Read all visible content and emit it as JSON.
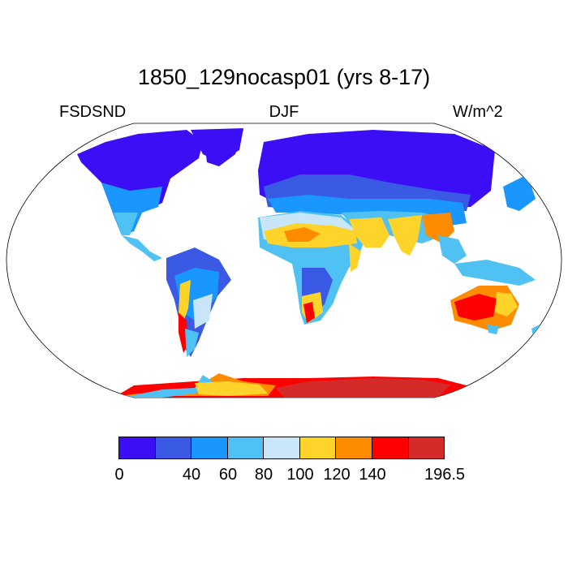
{
  "header": {
    "title": "1850_129nocasp01 (yrs 8-17)",
    "variable": "FSDSND",
    "season": "DJF",
    "units": "W/m^2"
  },
  "colorbar": {
    "colors": [
      "#3b0ef5",
      "#3a5ae6",
      "#1a96ff",
      "#4fc1f3",
      "#c8e6f7",
      "#ffd42a",
      "#ff8c00",
      "#ff0000",
      "#d42a2a"
    ],
    "tick_labels": [
      "0",
      "40",
      "60",
      "80",
      "100",
      "120",
      "140",
      "196.5"
    ]
  },
  "map": {
    "projection": "robinson",
    "background": "#ffffff"
  }
}
